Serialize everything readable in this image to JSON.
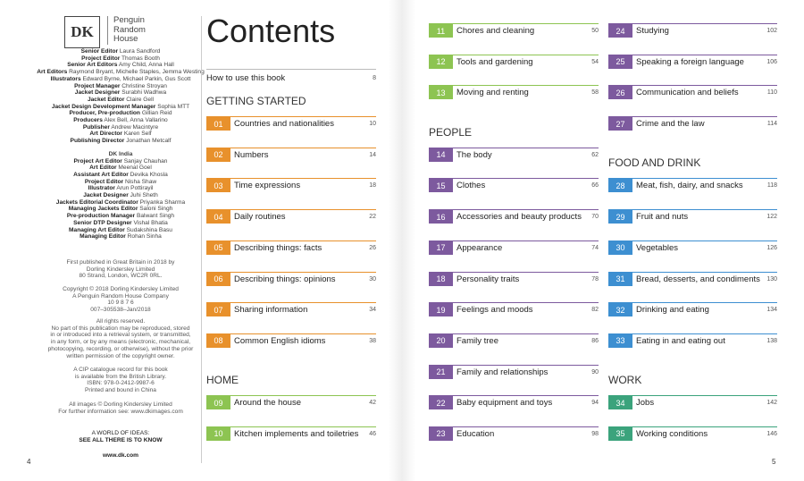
{
  "logo": {
    "mark": "DK",
    "publisher": [
      "Penguin",
      "Random",
      "House"
    ]
  },
  "credits": [
    {
      "role": "Senior Editor",
      "name": "Laura Sandford"
    },
    {
      "role": "Project Editor",
      "name": "Thomas Booth"
    },
    {
      "role": "Senior Art Editors",
      "name": "Amy Child, Anna Hall"
    },
    {
      "role": "Art Editors",
      "name": "Raymond Bryant, Michelle Staples, Jemma Westing"
    },
    {
      "role": "Illustrators",
      "name": "Edward Byrne, Michael Parkin, Gus Scott"
    },
    {
      "role": "Project Manager",
      "name": "Christine Stroyan"
    },
    {
      "role": "Jacket Designer",
      "name": "Surabhi Wadhwa"
    },
    {
      "role": "Jacket Editor",
      "name": "Claire Gell"
    },
    {
      "role": "Jacket Design Development Manager",
      "name": "Sophia MTT"
    },
    {
      "role": "Producer, Pre-production",
      "name": "Gillian Reid"
    },
    {
      "role": "Producers",
      "name": "Alex Bell, Anna Vallarino"
    },
    {
      "role": "Publisher",
      "name": "Andrew Macintyre"
    },
    {
      "role": "Art Director",
      "name": "Karen Self"
    },
    {
      "role": "Publishing Director",
      "name": "Jonathan Metcalf"
    }
  ],
  "india_heading": "DK India",
  "india_credits": [
    {
      "role": "Project Art Editor",
      "name": "Sanjay Chauhan"
    },
    {
      "role": "Art Editor",
      "name": "Meenal Goel"
    },
    {
      "role": "Assistant Art Editor",
      "name": "Devika Khosla"
    },
    {
      "role": "Project Editor",
      "name": "Nisha Shaw"
    },
    {
      "role": "Illustrator",
      "name": "Arun Pottirayil"
    },
    {
      "role": "Jacket Designer",
      "name": "Juhi Sheth"
    },
    {
      "role": "Jackets Editorial Coordinator",
      "name": "Priyanka Sharma"
    },
    {
      "role": "Managing Jackets Editor",
      "name": "Saloni Singh"
    },
    {
      "role": "Pre-production Manager",
      "name": "Balwant Singh"
    },
    {
      "role": "Senior DTP Designer",
      "name": "Vishal Bhatia"
    },
    {
      "role": "Managing Art Editor",
      "name": "Sudakshina Basu"
    },
    {
      "role": "Managing Editor",
      "name": "Rohan Sinha"
    }
  ],
  "imprint": [
    {
      "lines": [
        "First published in Great Britain in 2018 by",
        "Dorling Kindersley Limited",
        "80 Strand, London, WC2R 0RL."
      ]
    },
    {
      "lines": [
        "Copyright © 2018 Dorling Kindersley Limited",
        "A Penguin Random House Company",
        "10 9 8 7 6",
        "007–305538–Jan/2018"
      ]
    },
    {
      "lines": [
        "All rights reserved.",
        "No part of this publication may be reproduced, stored",
        "in or introduced into a retrieval system, or transmitted,",
        "in any form, or by any means (electronic, mechanical,",
        "photocopying, recording, or otherwise), without the prior",
        "written permission of the copyright owner."
      ]
    },
    {
      "lines": [
        "A CIP catalogue record for this book",
        "is available from the British Library.",
        "ISBN: 978-0-2412-9987-6",
        "Printed and bound in China"
      ]
    },
    {
      "lines": [
        "All images © Dorling Kindersley Limited",
        "For further information see: www.dkimages.com"
      ]
    },
    {
      "lines": [
        "A WORLD OF IDEAS:",
        "SEE ALL THERE IS TO KNOW"
      ]
    },
    {
      "lines": [
        "www.dk.com"
      ]
    }
  ],
  "page_numbers": [
    "4",
    "5"
  ],
  "contents": {
    "title": "Contents",
    "intro": {
      "label": "How to use this book",
      "page": 8
    },
    "columns": [
      [
        {
          "heading": "GETTING STARTED",
          "color": "#e8912c",
          "entries": [
            {
              "number": "01",
              "title": "Countries and nationalities",
              "page": 10
            },
            {
              "number": "02",
              "title": "Numbers",
              "page": 14
            },
            {
              "number": "03",
              "title": "Time expressions",
              "page": 18
            },
            {
              "number": "04",
              "title": "Daily routines",
              "page": 22
            },
            {
              "number": "05",
              "title": "Describing things: facts",
              "page": 26
            },
            {
              "number": "06",
              "title": "Describing things: opinions",
              "page": 30
            },
            {
              "number": "07",
              "title": "Sharing information",
              "page": 34
            },
            {
              "number": "08",
              "title": "Common English idioms",
              "page": 38
            }
          ]
        },
        {
          "heading": "HOME",
          "color": "#8dc452",
          "entries": [
            {
              "number": "09",
              "title": "Around the house",
              "page": 42
            },
            {
              "number": "10",
              "title": "Kitchen implements and toiletries",
              "page": 46
            }
          ]
        }
      ],
      [
        {
          "color": "#8dc452",
          "entries": [
            {
              "number": "11",
              "title": "Chores and cleaning",
              "page": 50
            },
            {
              "number": "12",
              "title": "Tools and gardening",
              "page": 54
            },
            {
              "number": "13",
              "title": "Moving and renting",
              "page": 58
            }
          ]
        },
        {
          "heading": "PEOPLE",
          "color": "#7d5a9e",
          "entries": [
            {
              "number": "14",
              "title": "The body",
              "page": 62
            },
            {
              "number": "15",
              "title": "Clothes",
              "page": 66
            },
            {
              "number": "16",
              "title": "Accessories and beauty products",
              "page": 70
            },
            {
              "number": "17",
              "title": "Appearance",
              "page": 74
            },
            {
              "number": "18",
              "title": "Personality traits",
              "page": 78
            },
            {
              "number": "19",
              "title": "Feelings and moods",
              "page": 82
            },
            {
              "number": "20",
              "title": "Family tree",
              "page": 86
            },
            {
              "number": "21",
              "title": "Family and relationships",
              "page": 90
            },
            {
              "number": "22",
              "title": "Baby equipment and toys",
              "page": 94
            },
            {
              "number": "23",
              "title": "Education",
              "page": 98
            }
          ]
        }
      ],
      [
        {
          "color": "#7d5a9e",
          "entries": [
            {
              "number": "24",
              "title": "Studying",
              "page": 102
            },
            {
              "number": "25",
              "title": "Speaking a foreign language",
              "page": 106
            },
            {
              "number": "26",
              "title": "Communication and beliefs",
              "page": 110
            },
            {
              "number": "27",
              "title": "Crime and the law",
              "page": 114
            }
          ]
        },
        {
          "heading": "FOOD AND DRINK",
          "color": "#3d8fd1",
          "entries": [
            {
              "number": "28",
              "title": "Meat, fish, dairy, and snacks",
              "page": 118
            },
            {
              "number": "29",
              "title": "Fruit and nuts",
              "page": 122
            },
            {
              "number": "30",
              "title": "Vegetables",
              "page": 126
            },
            {
              "number": "31",
              "title": "Bread, desserts, and condiments",
              "page": 130
            },
            {
              "number": "32",
              "title": "Drinking and eating",
              "page": 134
            },
            {
              "number": "33",
              "title": "Eating in and eating out",
              "page": 138
            }
          ]
        },
        {
          "heading": "WORK",
          "color": "#3ba37c",
          "entries": [
            {
              "number": "34",
              "title": "Jobs",
              "page": 142
            },
            {
              "number": "35",
              "title": "Working conditions",
              "page": 146
            }
          ]
        }
      ]
    ]
  }
}
